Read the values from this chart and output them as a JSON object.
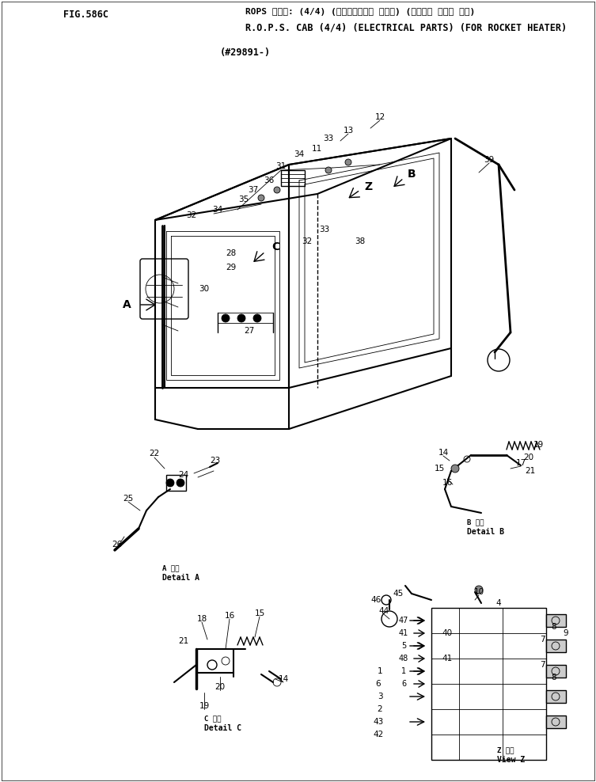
{
  "bg_color": "#f5f5f0",
  "text_color": "#1a1a1a",
  "fig_number": "FIG.586C",
  "title_line1": "ROPS キャブ: (4/4) (エレクトリカル パーツ) (ロケット ヒータ ヨウ)",
  "title_line2": "R.O.P.S. CAB (4/4) (ELECTRICAL PARTS) (FOR ROCKET HEATER)",
  "title_line3": "(#29891-)",
  "lw_thick": 1.5,
  "lw_med": 1.0,
  "lw_thin": 0.6,
  "fs_label": 7.5,
  "fs_header": 8.5,
  "fs_fig": 8.5
}
